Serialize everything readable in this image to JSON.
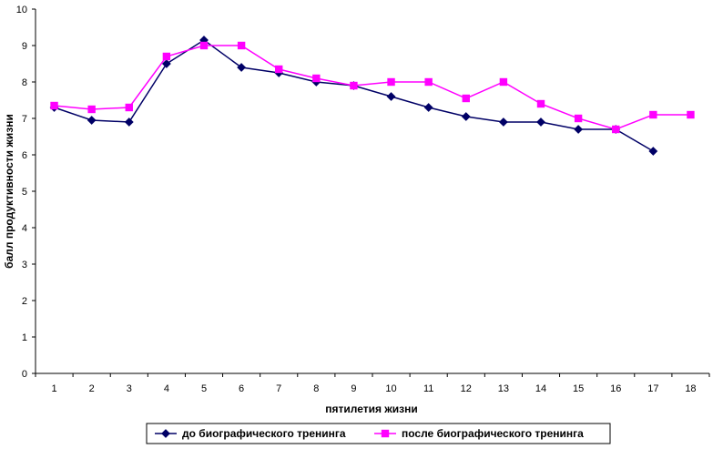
{
  "chart_data": {
    "type": "line",
    "xlabel": "пятилетия жизни",
    "ylabel": "балл продуктивности жизни",
    "x": [
      1,
      2,
      3,
      4,
      5,
      6,
      7,
      8,
      9,
      10,
      11,
      12,
      13,
      14,
      15,
      16,
      17,
      18
    ],
    "ylim": [
      0,
      10
    ],
    "yticks": [
      0,
      1,
      2,
      3,
      4,
      5,
      6,
      7,
      8,
      9,
      10
    ],
    "grid": false,
    "legend_position": "bottom",
    "series": [
      {
        "name": "до биографического тренинга",
        "color": "#000066",
        "marker": "diamond",
        "values": [
          7.3,
          6.95,
          6.9,
          8.5,
          9.15,
          8.4,
          8.25,
          8.0,
          7.9,
          7.6,
          7.3,
          7.05,
          6.9,
          6.9,
          6.7,
          6.7,
          6.1,
          null
        ]
      },
      {
        "name": "после биографического тренинга",
        "color": "#FF00FF",
        "marker": "square",
        "values": [
          7.35,
          7.25,
          7.3,
          8.7,
          9.0,
          9.0,
          8.35,
          8.1,
          7.9,
          8.0,
          8.0,
          7.55,
          8.0,
          7.4,
          7.0,
          6.7,
          7.1,
          7.1
        ]
      }
    ]
  }
}
